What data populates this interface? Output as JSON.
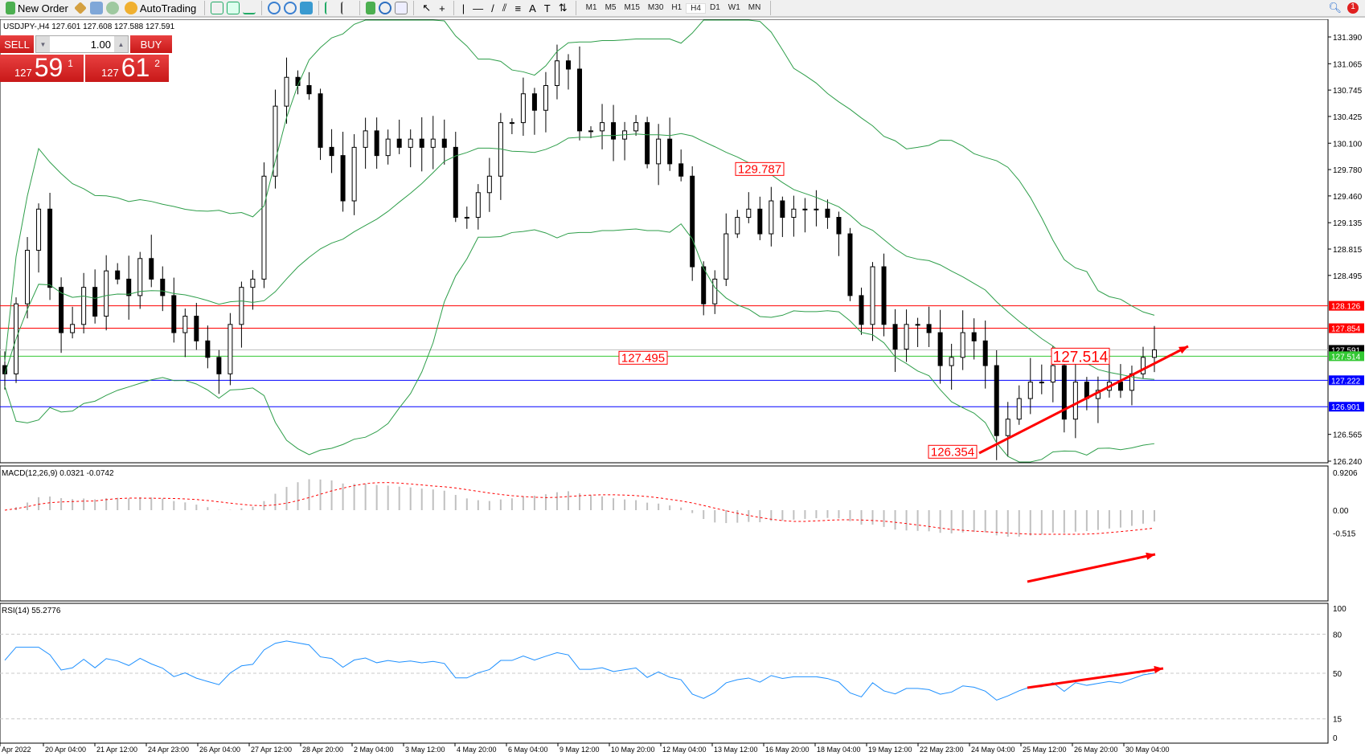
{
  "toolbar": {
    "new_order": "New Order",
    "autotrading": "AutoTrading",
    "timeframes": [
      "M1",
      "M5",
      "M15",
      "M30",
      "H1",
      "H4",
      "D1",
      "W1",
      "MN"
    ],
    "active_timeframe": "H4",
    "notification_count": "1"
  },
  "chart": {
    "header": "USDJPY-,H4  127.601 127.608 127.588 127.591",
    "symbol": "USDJPY-",
    "timeframe": "H4"
  },
  "trade_panel": {
    "sell_label": "SELL",
    "buy_label": "BUY",
    "lot": "1.00",
    "sell_prefix": "127",
    "sell_big": "59",
    "sell_sup": "1",
    "buy_prefix": "127",
    "buy_big": "61",
    "buy_sup": "2",
    "color": "#d42222"
  },
  "price_axis": [
    "131.390",
    "131.065",
    "130.745",
    "130.425",
    "130.100",
    "129.780",
    "129.460",
    "129.135",
    "128.815",
    "128.495",
    "126.565",
    "126.240"
  ],
  "levels": [
    {
      "price": 128.126,
      "label": "128.126",
      "color": "#ff0000"
    },
    {
      "price": 127.854,
      "label": "127.854",
      "color": "#ff0000"
    },
    {
      "price": 127.591,
      "label": "127.591",
      "color": "#000000"
    },
    {
      "price": 127.514,
      "label": "127.514",
      "color": "#32c832"
    },
    {
      "price": 127.222,
      "label": "127.222",
      "color": "#0000ff"
    },
    {
      "price": 126.901,
      "label": "126.901",
      "color": "#0000ff"
    }
  ],
  "annotations": [
    "129.787",
    "127.495",
    "126.354",
    "127.514"
  ],
  "macd": {
    "label": "MACD(12,26,9) 0.0321 -0.0742",
    "axis": [
      "0.9206",
      "0.00",
      "-0.515"
    ]
  },
  "rsi": {
    "label": "RSI(14) 55.2776",
    "axis": [
      "100",
      "80",
      "50",
      "15",
      "0"
    ]
  },
  "time_axis": [
    "Apr 2022",
    "20 Apr 04:00",
    "21 Apr 12:00",
    "24 Apr 23:00",
    "26 Apr 04:00",
    "27 Apr 12:00",
    "28 Apr 20:00",
    "2 May 04:00",
    "3 May 12:00",
    "4 May 20:00",
    "6 May 04:00",
    "9 May 12:00",
    "10 May 20:00",
    "12 May 04:00",
    "13 May 12:00",
    "16 May 20:00",
    "18 May 04:00",
    "19 May 12:00",
    "22 May 23:00",
    "24 May 04:00",
    "25 May 12:00",
    "26 May 20:00",
    "30 May 04:00"
  ],
  "chart_data": {
    "type": "candlestick",
    "ylim": [
      126.24,
      131.39
    ],
    "bands_color": "#2e9e4a",
    "closes": [
      127.3,
      128.15,
      128.8,
      129.3,
      128.35,
      127.8,
      127.9,
      128.35,
      128.0,
      128.55,
      128.45,
      128.25,
      128.7,
      128.45,
      128.25,
      127.8,
      128.0,
      127.7,
      127.5,
      127.3,
      127.9,
      128.35,
      128.45,
      129.7,
      130.55,
      130.9,
      130.8,
      130.7,
      130.05,
      129.95,
      129.4,
      130.05,
      130.25,
      129.95,
      130.15,
      130.05,
      130.15,
      130.05,
      130.15,
      130.05,
      129.2,
      129.2,
      129.5,
      129.7,
      130.35,
      130.35,
      130.7,
      130.5,
      130.8,
      131.1,
      131.0,
      130.25,
      130.25,
      130.35,
      130.15,
      130.25,
      130.35,
      129.85,
      130.15,
      129.85,
      129.7,
      128.6,
      128.15,
      128.45,
      129.0,
      129.2,
      129.3,
      129.0,
      129.4,
      129.2,
      129.3,
      129.3,
      129.3,
      129.2,
      129.0,
      128.25,
      127.9,
      128.6,
      127.9,
      127.6,
      127.9,
      127.9,
      127.8,
      127.4,
      127.5,
      127.8,
      127.7,
      127.4,
      126.55,
      126.75,
      127.0,
      127.2,
      127.2,
      127.4,
      126.75,
      127.2,
      127.0,
      127.1,
      127.2,
      127.1,
      127.3,
      127.5,
      127.591
    ]
  }
}
